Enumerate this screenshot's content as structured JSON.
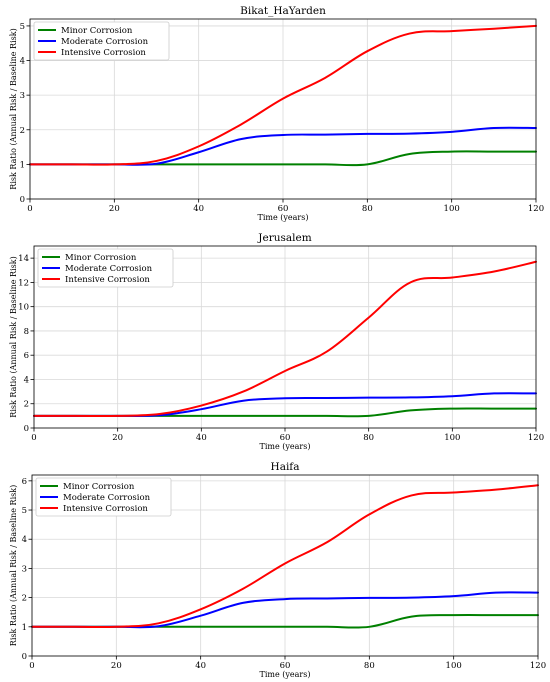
{
  "chart_data": [
    {
      "type": "line",
      "title": "Bikat_HaYarden",
      "xlabel": "Time (years)",
      "ylabel": "Risk Ratio (Annual Risk / Baseline Risk)",
      "xlim": [
        0,
        120
      ],
      "ylim": [
        0,
        5.2
      ],
      "xticks": [
        0,
        20,
        40,
        60,
        80,
        100,
        120
      ],
      "yticks": [
        0,
        1,
        2,
        3,
        4,
        5
      ],
      "grid": true,
      "legend": "top-left",
      "x": [
        0,
        10,
        20,
        30,
        40,
        50,
        60,
        70,
        80,
        90,
        100,
        110,
        120
      ],
      "series": [
        {
          "name": "Minor Corrosion",
          "color": "#008000",
          "values": [
            1,
            1,
            1,
            1,
            1,
            1,
            1,
            1,
            1,
            1.3,
            1.37,
            1.37,
            1.37
          ]
        },
        {
          "name": "Moderate Corrosion",
          "color": "#0000ff",
          "values": [
            1,
            1,
            1,
            1.02,
            1.35,
            1.73,
            1.85,
            1.86,
            1.88,
            1.89,
            1.94,
            2.05,
            2.05
          ]
        },
        {
          "name": "Intensive Corrosion",
          "color": "#ff0000",
          "values": [
            1,
            1,
            1,
            1.1,
            1.52,
            2.15,
            2.9,
            3.5,
            4.27,
            4.78,
            4.85,
            4.92,
            5.0
          ]
        }
      ]
    },
    {
      "type": "line",
      "title": "Jerusalem",
      "xlabel": "Time (years)",
      "ylabel": "Risk Ratio (Annual Risk / Baseline Risk)",
      "xlim": [
        0,
        120
      ],
      "ylim": [
        0,
        15
      ],
      "xticks": [
        0,
        20,
        40,
        60,
        80,
        100,
        120
      ],
      "yticks": [
        0,
        2,
        4,
        6,
        8,
        10,
        12,
        14
      ],
      "grid": true,
      "legend": "top-left",
      "x": [
        0,
        10,
        20,
        30,
        40,
        50,
        60,
        70,
        80,
        90,
        100,
        110,
        120
      ],
      "series": [
        {
          "name": "Minor Corrosion",
          "color": "#008000",
          "values": [
            1,
            1,
            1,
            1,
            1,
            1,
            1,
            1,
            1,
            1.45,
            1.6,
            1.6,
            1.6
          ]
        },
        {
          "name": "Moderate Corrosion",
          "color": "#0000ff",
          "values": [
            1,
            1,
            1,
            1.05,
            1.55,
            2.25,
            2.45,
            2.47,
            2.5,
            2.52,
            2.62,
            2.85,
            2.85
          ]
        },
        {
          "name": "Intensive Corrosion",
          "color": "#ff0000",
          "values": [
            1,
            1,
            1,
            1.15,
            1.85,
            3.0,
            4.7,
            6.3,
            9.1,
            12.0,
            12.4,
            12.9,
            13.7
          ]
        }
      ]
    },
    {
      "type": "line",
      "title": "Haifa",
      "xlabel": "Time (years)",
      "ylabel": "Risk Ratio (Annual Risk / Baseline Risk)",
      "xlim": [
        0,
        120
      ],
      "ylim": [
        0,
        6.2
      ],
      "xticks": [
        0,
        20,
        40,
        60,
        80,
        100,
        120
      ],
      "yticks": [
        0,
        1,
        2,
        3,
        4,
        5,
        6
      ],
      "grid": true,
      "legend": "top-left",
      "x": [
        0,
        10,
        20,
        30,
        40,
        50,
        60,
        70,
        80,
        90,
        100,
        110,
        120
      ],
      "series": [
        {
          "name": "Minor Corrosion",
          "color": "#008000",
          "values": [
            1,
            1,
            1,
            1,
            1,
            1,
            1,
            1,
            1,
            1.35,
            1.4,
            1.4,
            1.4
          ]
        },
        {
          "name": "Moderate Corrosion",
          "color": "#0000ff",
          "values": [
            1,
            1,
            1,
            1.02,
            1.38,
            1.82,
            1.95,
            1.97,
            1.99,
            2.0,
            2.05,
            2.17,
            2.17
          ]
        },
        {
          "name": "Intensive Corrosion",
          "color": "#ff0000",
          "values": [
            1,
            1,
            1,
            1.12,
            1.6,
            2.3,
            3.17,
            3.9,
            4.85,
            5.5,
            5.6,
            5.7,
            5.85
          ]
        }
      ]
    }
  ]
}
